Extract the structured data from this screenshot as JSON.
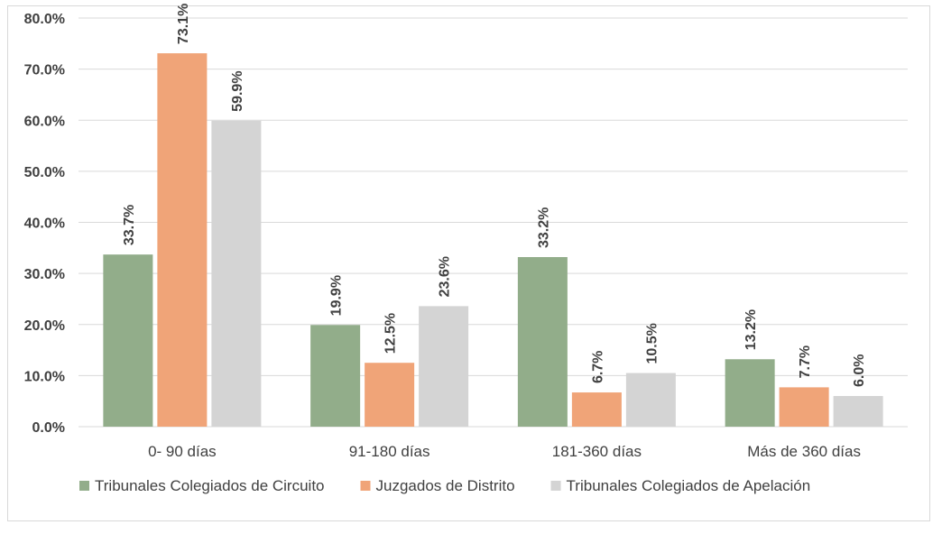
{
  "chart_data": {
    "type": "bar",
    "title": "",
    "xlabel": "",
    "ylabel": "",
    "categories": [
      "0- 90 días",
      "91-180 días",
      "181-360 días",
      "Más de 360 días"
    ],
    "series": [
      {
        "name": "Tribunales Colegiados de Circuito",
        "color": "#92ad8a",
        "values": [
          33.7,
          19.9,
          33.2,
          13.2
        ],
        "labels": [
          "33.7%",
          "19.9%",
          "33.2%",
          "13.2%"
        ]
      },
      {
        "name": "Juzgados de Distrito",
        "color": "#f0a478",
        "values": [
          73.1,
          12.5,
          6.7,
          7.7
        ],
        "labels": [
          "73.1%",
          "12.5%",
          "6.7%",
          "7.7%"
        ]
      },
      {
        "name": "Tribunales Colegiados de Apelación",
        "color": "#d4d4d4",
        "values": [
          59.9,
          23.6,
          10.5,
          6.0
        ],
        "labels": [
          "59.9%",
          "23.6%",
          "10.5%",
          "6.0%"
        ]
      }
    ],
    "ylim": [
      0,
      80
    ],
    "yticks": [
      "0.0%",
      "10.0%",
      "20.0%",
      "30.0%",
      "40.0%",
      "50.0%",
      "60.0%",
      "70.0%",
      "80.0%"
    ],
    "grid": true,
    "legend_position": "bottom",
    "gridline_color": "#d9d9d9"
  }
}
